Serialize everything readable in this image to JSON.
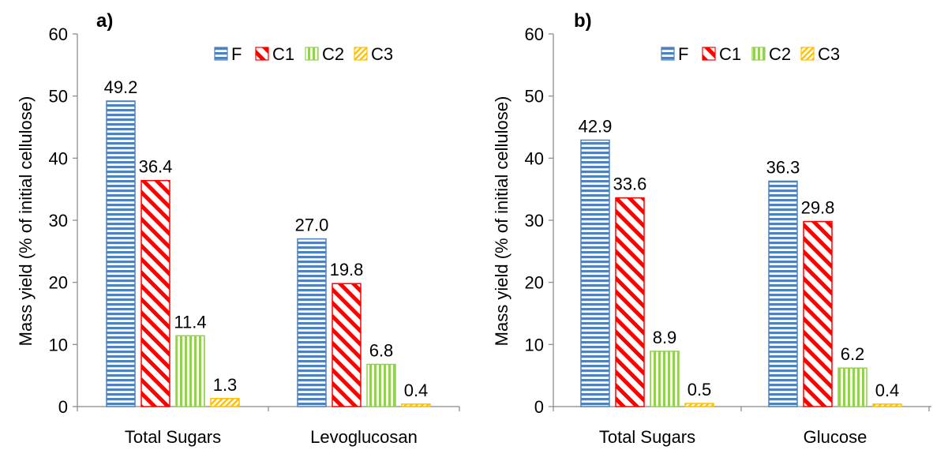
{
  "chart_data": [
    {
      "type": "bar",
      "panel_label": "a)",
      "ylabel": "Mass yield (% of initial cellulose)",
      "ylim": [
        0,
        60
      ],
      "yticks": [
        0,
        10,
        20,
        30,
        40,
        50,
        60
      ],
      "categories": [
        "Total Sugars",
        "Levoglucosan"
      ],
      "legend_position": "top-right",
      "series": [
        {
          "name": "F",
          "values": [
            49.2,
            27.0
          ],
          "labels": [
            "49.2",
            "27.0"
          ],
          "color": "#4f81bd",
          "pattern": "horizontal"
        },
        {
          "name": "C1",
          "values": [
            36.4,
            19.8
          ],
          "labels": [
            "36.4",
            "19.8"
          ],
          "color": "#ff0000",
          "pattern": "diagonal-wide"
        },
        {
          "name": "C2",
          "values": [
            11.4,
            6.8
          ],
          "labels": [
            "11.4",
            "6.8"
          ],
          "color": "#92d050",
          "pattern": "vertical"
        },
        {
          "name": "C3",
          "values": [
            1.3,
            0.4
          ],
          "labels": [
            "1.3",
            "0.4"
          ],
          "color": "#ffc000",
          "pattern": "diagonal-narrow"
        }
      ]
    },
    {
      "type": "bar",
      "panel_label": "b)",
      "ylabel": "Mass yield (% of initial cellulose)",
      "ylim": [
        0,
        60
      ],
      "yticks": [
        0,
        10,
        20,
        30,
        40,
        50,
        60
      ],
      "categories": [
        "Total Sugars",
        "Glucose"
      ],
      "legend_position": "top-right",
      "series": [
        {
          "name": "F",
          "values": [
            42.9,
            36.3
          ],
          "labels": [
            "42.9",
            "36.3"
          ],
          "color": "#4f81bd",
          "pattern": "horizontal"
        },
        {
          "name": "C1",
          "values": [
            33.6,
            29.8
          ],
          "labels": [
            "33.6",
            "29.8"
          ],
          "color": "#ff0000",
          "pattern": "diagonal-wide"
        },
        {
          "name": "C2",
          "values": [
            8.9,
            6.2
          ],
          "labels": [
            "8.9",
            "6.2"
          ],
          "color": "#92d050",
          "pattern": "vertical"
        },
        {
          "name": "C3",
          "values": [
            0.5,
            0.4
          ],
          "labels": [
            "0.5",
            "0.4"
          ],
          "color": "#ffc000",
          "pattern": "diagonal-narrow"
        }
      ]
    }
  ]
}
